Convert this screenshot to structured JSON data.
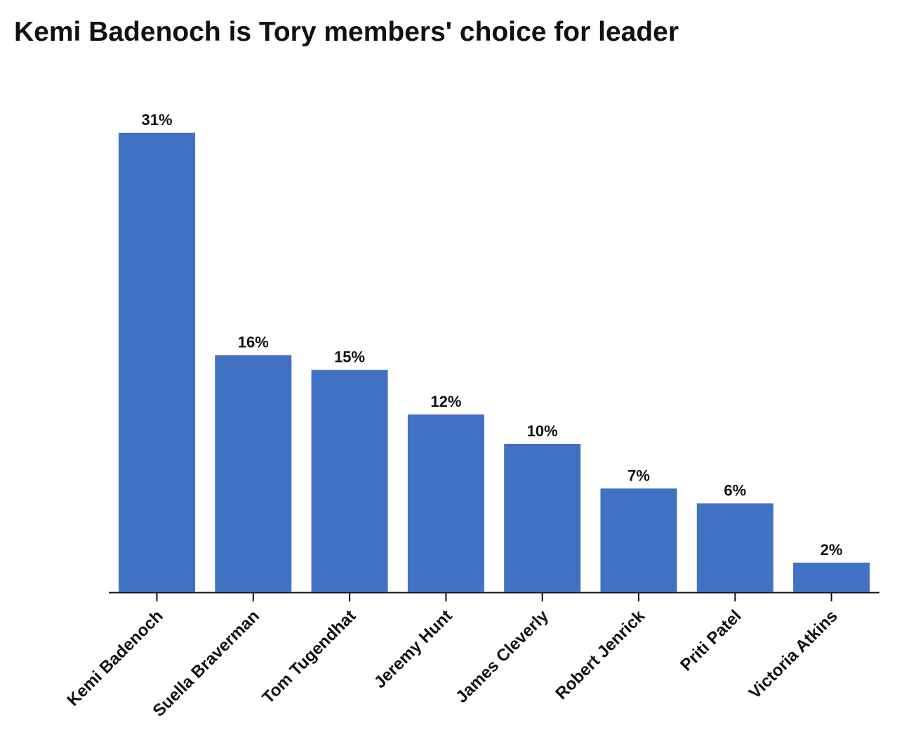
{
  "chart_data": {
    "type": "bar",
    "title": "Kemi Badenoch is Tory members' choice for leader",
    "categories": [
      "Kemi Badenoch",
      "Suella Braverman",
      "Tom Tugendhat",
      "Jeremy Hunt",
      "James Cleverly",
      "Robert Jenrick",
      "Priti Patel",
      "Victoria Atkins"
    ],
    "values": [
      31,
      16,
      15,
      12,
      10,
      7,
      6,
      2
    ],
    "value_labels": [
      "31%",
      "16%",
      "15%",
      "12%",
      "10%",
      "7%",
      "6%",
      "2%"
    ],
    "color": "#4171c3"
  }
}
